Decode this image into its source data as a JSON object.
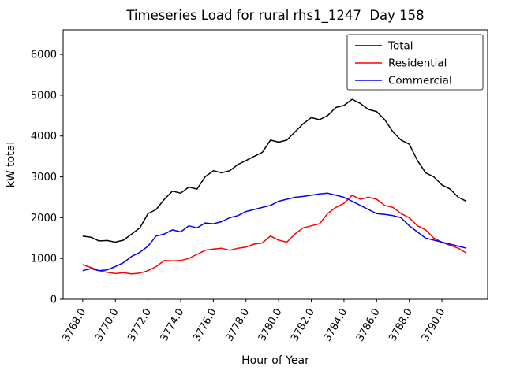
{
  "chart_data": {
    "type": "line",
    "title": "Timeseries Load for rural rhs1_1247  Day 158",
    "xlabel": "Hour of Year",
    "ylabel": "kW total",
    "grid": false,
    "legend_position": "upper right",
    "xlim": [
      3766.8,
      3792.8
    ],
    "ylim": [
      0,
      6600
    ],
    "x_ticks": [
      3768,
      3770,
      3772,
      3774,
      3776,
      3778,
      3780,
      3782,
      3784,
      3786,
      3788,
      3790
    ],
    "x_tick_labels": [
      "3768.0",
      "3770.0",
      "3772.0",
      "3774.0",
      "3776.0",
      "3778.0",
      "3780.0",
      "3782.0",
      "3784.0",
      "3786.0",
      "3788.0",
      "3790.0"
    ],
    "y_ticks": [
      0,
      1000,
      2000,
      3000,
      4000,
      5000,
      6000
    ],
    "y_tick_labels": [
      "0",
      "1000",
      "2000",
      "3000",
      "4000",
      "5000",
      "6000"
    ],
    "x": [
      3768,
      3768.5,
      3769,
      3769.5,
      3770,
      3770.5,
      3771,
      3771.5,
      3772,
      3772.5,
      3773,
      3773.5,
      3774,
      3774.5,
      3775,
      3775.5,
      3776,
      3776.5,
      3777,
      3777.5,
      3778,
      3778.5,
      3779,
      3779.5,
      3780,
      3780.5,
      3781,
      3781.5,
      3782,
      3782.5,
      3783,
      3783.5,
      3784,
      3784.5,
      3785,
      3785.5,
      3786,
      3786.5,
      3787,
      3787.5,
      3788,
      3788.5,
      3789,
      3789.5,
      3790,
      3790.5,
      3791,
      3791.5
    ],
    "series": [
      {
        "name": "Total",
        "color": "#000000",
        "values": [
          1550,
          1520,
          1430,
          1440,
          1400,
          1450,
          1600,
          1750,
          2100,
          2200,
          2450,
          2650,
          2600,
          2750,
          2700,
          3000,
          3150,
          3100,
          3150,
          3300,
          3400,
          3500,
          3600,
          3900,
          3850,
          3900,
          4100,
          4300,
          4450,
          4400,
          4500,
          4700,
          4750,
          4900,
          4800,
          4650,
          4600,
          4400,
          4100,
          3900,
          3800,
          3400,
          3100,
          3000,
          2800,
          2700,
          2500,
          2400
        ]
      },
      {
        "name": "Residential",
        "color": "#ff0000",
        "values": [
          850,
          780,
          700,
          660,
          630,
          650,
          620,
          640,
          700,
          800,
          950,
          940,
          950,
          1000,
          1100,
          1200,
          1230,
          1250,
          1200,
          1250,
          1280,
          1350,
          1380,
          1550,
          1450,
          1400,
          1600,
          1750,
          1800,
          1850,
          2100,
          2250,
          2350,
          2550,
          2450,
          2500,
          2450,
          2300,
          2250,
          2100,
          2000,
          1800,
          1700,
          1500,
          1400,
          1320,
          1250,
          1130
        ]
      },
      {
        "name": "Commercial",
        "color": "#0000ff",
        "values": [
          700,
          750,
          700,
          720,
          800,
          900,
          1050,
          1150,
          1300,
          1550,
          1600,
          1700,
          1650,
          1800,
          1750,
          1870,
          1850,
          1900,
          2000,
          2050,
          2150,
          2200,
          2250,
          2300,
          2400,
          2450,
          2500,
          2520,
          2550,
          2580,
          2600,
          2550,
          2500,
          2400,
          2300,
          2200,
          2100,
          2080,
          2050,
          2000,
          1800,
          1650,
          1500,
          1450,
          1400,
          1350,
          1300,
          1250
        ]
      }
    ]
  }
}
